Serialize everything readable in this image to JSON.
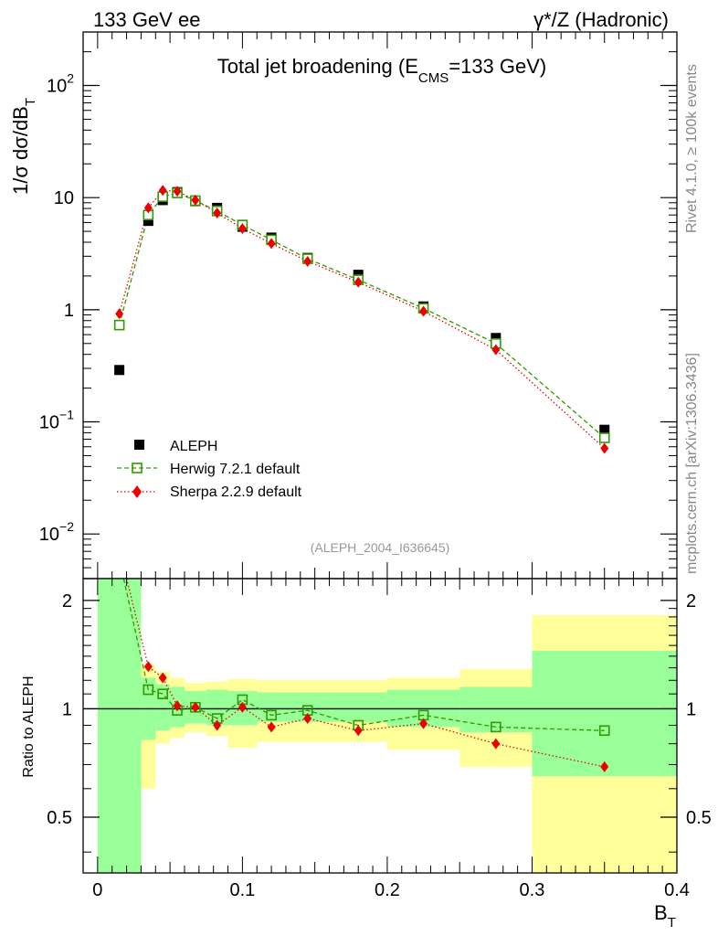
{
  "header": {
    "left_label": "133 GeV ee",
    "right_label": "γ*/Z (Hadronic)"
  },
  "side_texts": {
    "top": "Rivet 4.1.0, ≥ 100k events",
    "bottom": "mcplots.cern.ch [arXiv:1306.3436]"
  },
  "colors": {
    "data": "#000000",
    "herwig": "#339900",
    "sherpa": "#ee0000",
    "band_inner": "#99ff99",
    "band_outer": "#ffff99"
  },
  "chart_data": [
    {
      "type": "scatter",
      "title_main": "Total jet broadening (E",
      "title_sub": "CMS",
      "title_tail": "=133 GeV)",
      "ylabel": "1/σ  dσ/dB",
      "ylabel_sub": "T",
      "yscale": "log",
      "ylim": [
        0.004,
        300
      ],
      "xlim": [
        -0.01,
        0.4
      ],
      "yticks": [
        {
          "value": 0.01,
          "base": "10",
          "exp": "−2"
        },
        {
          "value": 0.1,
          "base": "10",
          "exp": "−1"
        },
        {
          "value": 1,
          "label": "1"
        },
        {
          "value": 10,
          "label": "10"
        },
        {
          "value": 100,
          "base": "10",
          "exp": "2"
        }
      ],
      "watermark": "(ALEPH_2004_I636645)",
      "legend_position": "bottom-left",
      "x": [
        0.015,
        0.035,
        0.045,
        0.055,
        0.0675,
        0.0825,
        0.1,
        0.12,
        0.145,
        0.18,
        0.225,
        0.275,
        0.35
      ],
      "series": [
        {
          "name": "ALEPH",
          "marker": "square",
          "values": [
            0.29,
            6.2,
            9.5,
            11.2,
            9.3,
            8.1,
            5.5,
            4.4,
            2.9,
            2.05,
            1.07,
            0.56,
            0.085
          ]
        },
        {
          "name": "Herwig 7.2.1 default",
          "marker": "open-square",
          "line": "dashed",
          "values": [
            0.73,
            7.0,
            10.2,
            11.0,
            9.4,
            7.6,
            5.7,
            4.2,
            2.85,
            1.85,
            1.03,
            0.5,
            0.072
          ]
        },
        {
          "name": "Sherpa 2.2.9 default",
          "marker": "diamond",
          "line": "dotted",
          "values": [
            0.92,
            8.1,
            11.6,
            11.4,
            9.5,
            7.3,
            5.3,
            3.9,
            2.7,
            1.76,
            0.97,
            0.44,
            0.058
          ]
        }
      ]
    },
    {
      "type": "scatter",
      "ylabel": "Ratio to ALEPH",
      "xlabel": "B",
      "xlabel_sub": "T",
      "yscale": "log",
      "ylim": [
        0.35,
        2.3
      ],
      "xlim": [
        -0.01,
        0.4
      ],
      "yticks": [
        0.5,
        1,
        2
      ],
      "xticks": [
        0,
        0.1,
        0.2,
        0.3,
        0.4
      ],
      "reference_line": 1,
      "bins": [
        {
          "lo": 0.0,
          "hi": 0.03,
          "inner": [
            0.1,
            10
          ],
          "outer": [
            0.1,
            10
          ]
        },
        {
          "lo": 0.03,
          "hi": 0.04,
          "inner": [
            0.82,
            1.22
          ],
          "outer": [
            0.6,
            1.33
          ]
        },
        {
          "lo": 0.04,
          "hi": 0.05,
          "inner": [
            0.87,
            1.17
          ],
          "outer": [
            0.8,
            1.27
          ]
        },
        {
          "lo": 0.05,
          "hi": 0.06,
          "inner": [
            0.89,
            1.15
          ],
          "outer": [
            0.83,
            1.22
          ]
        },
        {
          "lo": 0.06,
          "hi": 0.075,
          "inner": [
            0.91,
            1.12
          ],
          "outer": [
            0.86,
            1.18
          ]
        },
        {
          "lo": 0.075,
          "hi": 0.09,
          "inner": [
            0.9,
            1.13
          ],
          "outer": [
            0.84,
            1.19
          ]
        },
        {
          "lo": 0.09,
          "hi": 0.11,
          "inner": [
            0.9,
            1.12
          ],
          "outer": [
            0.78,
            1.21
          ]
        },
        {
          "lo": 0.11,
          "hi": 0.13,
          "inner": [
            0.92,
            1.11
          ],
          "outer": [
            0.81,
            1.2
          ]
        },
        {
          "lo": 0.13,
          "hi": 0.16,
          "inner": [
            0.92,
            1.11
          ],
          "outer": [
            0.81,
            1.2
          ]
        },
        {
          "lo": 0.16,
          "hi": 0.2,
          "inner": [
            0.92,
            1.11
          ],
          "outer": [
            0.81,
            1.2
          ]
        },
        {
          "lo": 0.2,
          "hi": 0.25,
          "inner": [
            0.89,
            1.13
          ],
          "outer": [
            0.77,
            1.22
          ]
        },
        {
          "lo": 0.25,
          "hi": 0.3,
          "inner": [
            0.86,
            1.15
          ],
          "outer": [
            0.69,
            1.29
          ]
        },
        {
          "lo": 0.3,
          "hi": 0.4,
          "inner": [
            0.65,
            1.45
          ],
          "outer": [
            0.3,
            1.82
          ]
        }
      ],
      "series": [
        {
          "name": "Herwig 7.2.1 default",
          "x": [
            0.035,
            0.045,
            0.055,
            0.0675,
            0.0825,
            0.1,
            0.12,
            0.145,
            0.18,
            0.225,
            0.275,
            0.35
          ],
          "values": [
            1.13,
            1.1,
            0.99,
            1.01,
            0.94,
            1.06,
            0.96,
            0.99,
            0.9,
            0.96,
            0.89,
            0.87
          ],
          "curve_start": {
            "x": 0.018,
            "y": 2.5
          }
        },
        {
          "name": "Sherpa 2.2.9 default",
          "x": [
            0.035,
            0.045,
            0.055,
            0.0675,
            0.0825,
            0.1,
            0.12,
            0.145,
            0.18,
            0.225,
            0.275,
            0.35
          ],
          "values": [
            1.31,
            1.22,
            1.02,
            1.01,
            0.9,
            1.01,
            0.89,
            0.94,
            0.87,
            0.91,
            0.8,
            0.69
          ],
          "curve_start": {
            "x": 0.02,
            "y": 2.5
          }
        }
      ]
    }
  ]
}
